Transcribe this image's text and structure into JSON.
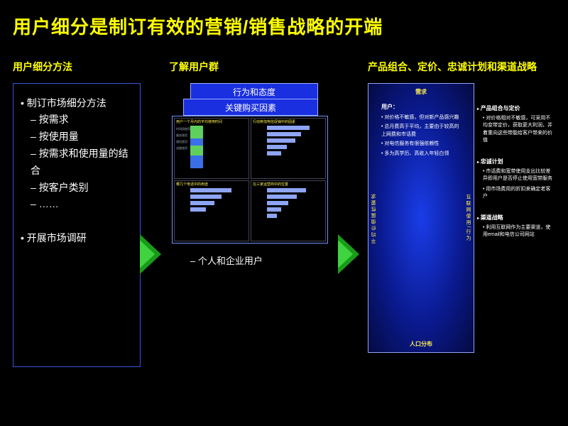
{
  "title": "用户细分是制订有效的营销/销售战略的开端",
  "col1": {
    "head": "用户细分方法",
    "bullets": {
      "b1": "制订市场细分方法",
      "s1": "按需求",
      "s2": "按使用量",
      "s3": "按需求和使用量的结合",
      "s4": "按客户类别",
      "s5": "……",
      "b2": "开展市场调研"
    }
  },
  "col2": {
    "head": "了解用户群",
    "layer_back": "行为和态度",
    "layer_mid": "关键购买因素",
    "subcap": "– 个人和企业用户",
    "quads": {
      "q1_title": "用户一个月内的平均使用时间",
      "q2_title": "行动参加电信促销中的因素",
      "q3_title": "哪几个电话中的用途",
      "q4_title": "在三家运营商中的位置"
    },
    "stacked": {
      "segments": [
        {
          "h": 18,
          "color": "#3a6fe8"
        },
        {
          "h": 14,
          "color": "#5fd05f"
        },
        {
          "h": 10,
          "color": "#3a6fe8"
        },
        {
          "h": 18,
          "color": "#5fd05f"
        }
      ]
    },
    "hbars_a": [
      60,
      48,
      40,
      28,
      20
    ],
    "hbars_b": [
      58,
      44,
      34,
      22
    ],
    "hbars_c": [
      55,
      42,
      30,
      20,
      14
    ]
  },
  "col3": {
    "head": "产品组合、定价、忠诚计划和渠道战略",
    "panel": {
      "top": "需求",
      "bottom": "人口分布",
      "left": "平均价值属性要求",
      "right": "互联网使用/行为",
      "user_head": "用户：",
      "points": [
        "对价格不敏感，但对新产品感兴趣",
        "总月费高于平均，主要由于较高的上网费和市话费",
        "对电信服务有很强依赖性",
        "多为高学历、高收入年轻白领"
      ]
    },
    "strategies": {
      "g1": {
        "head": "产品组合与定价",
        "items": [
          "对价格相对不敏感，可采用不均变带定价，获取更大利润，并着重向这些带能给客户带来的价值"
        ]
      },
      "g2": {
        "head": "忠诚计划",
        "items": [
          "市话费和宽带使用支出比较差异即用户是否停止使用宽带服务",
          "用市场费用的折扣来确定老客户"
        ]
      },
      "g3": {
        "head": "渠道战略",
        "items": [
          "利用互联网作为主要渠道，使用email和电信公司网站"
        ]
      }
    }
  }
}
